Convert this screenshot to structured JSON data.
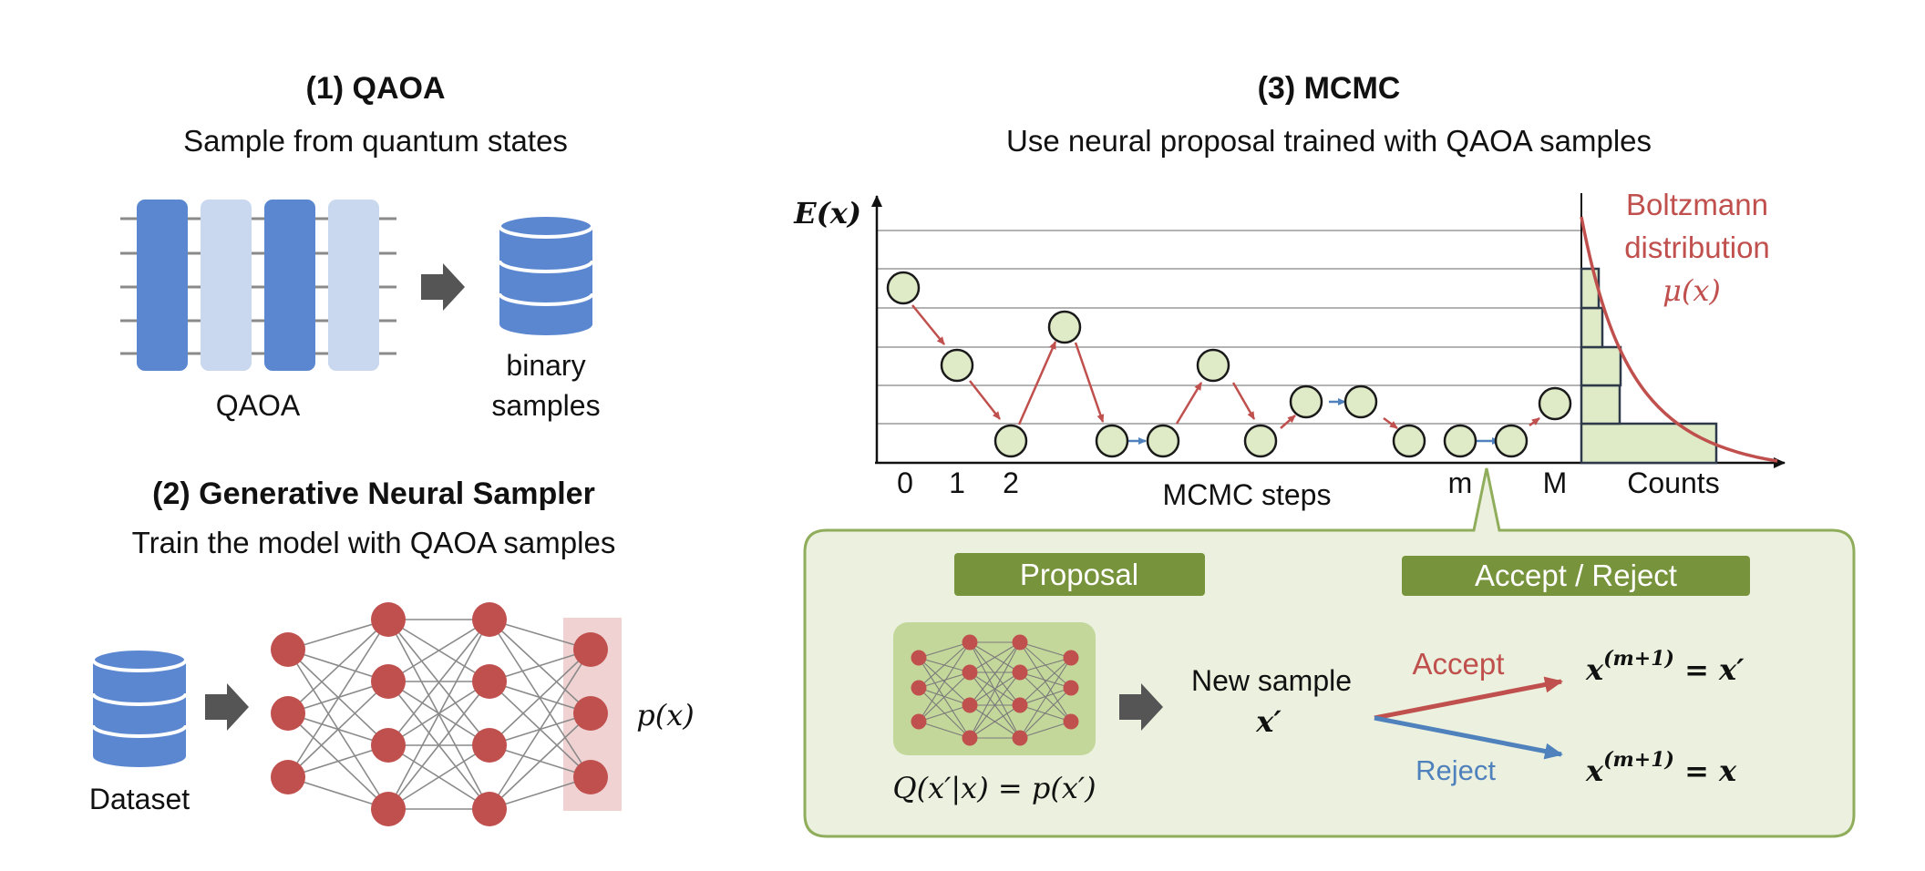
{
  "section1": {
    "title": "(1) QAOA",
    "subtitle": "Sample from quantum states",
    "circuit_label": "QAOA",
    "samples_label_line1": "binary",
    "samples_label_line2": "samples",
    "colors": {
      "dark_block": "#5b87d1",
      "light_block": "#c9d7ef",
      "database": "#5b87d1"
    }
  },
  "section2": {
    "title": "(2) Generative Neural Sampler",
    "subtitle": "Train the model with QAOA samples",
    "dataset_label": "Dataset",
    "output_label": "p(x)",
    "colors": {
      "node": "#c0504d",
      "output_highlight": "#f0d2d2",
      "edge": "#8a8a8a"
    }
  },
  "section3": {
    "title": "(3) MCMC",
    "subtitle": "Use neural proposal trained with QAOA samples",
    "chart": {
      "y_axis_label": "E(x)",
      "x_axis_label": "MCMC steps",
      "tick_labels": [
        "0",
        "1",
        "2",
        "m",
        "M"
      ],
      "counts_label": "Counts",
      "dist_label_line1": "Boltzmann",
      "dist_label_line2": "distribution",
      "dist_symbol": "μ(x)"
    },
    "colors": {
      "state_fill": "#dfeac7",
      "accepted_arrow": "#c0504d",
      "rejected_arrow": "#4f81bd",
      "histogram_fill": "#dfeac7",
      "curve": "#c0504d"
    },
    "callout": {
      "proposal_badge": "Proposal",
      "accept_reject_badge": "Accept / Reject",
      "proposal_formula": "Q(x′|x) = p(x′)",
      "new_sample_line1": "New sample",
      "new_sample_symbol": "x′",
      "accept_label": "Accept",
      "reject_label": "Reject",
      "accept_result_base": "x",
      "accept_result_sup": "(m+1)",
      "accept_result_rhs": " = x′",
      "reject_result_base": "x",
      "reject_result_sup": "(m+1)",
      "reject_result_rhs": " = x",
      "colors": {
        "panel_bg": "#ebf1de",
        "panel_border": "#8fad5b",
        "badge": "#77933c",
        "net_bg": "#c4d79b"
      }
    }
  }
}
